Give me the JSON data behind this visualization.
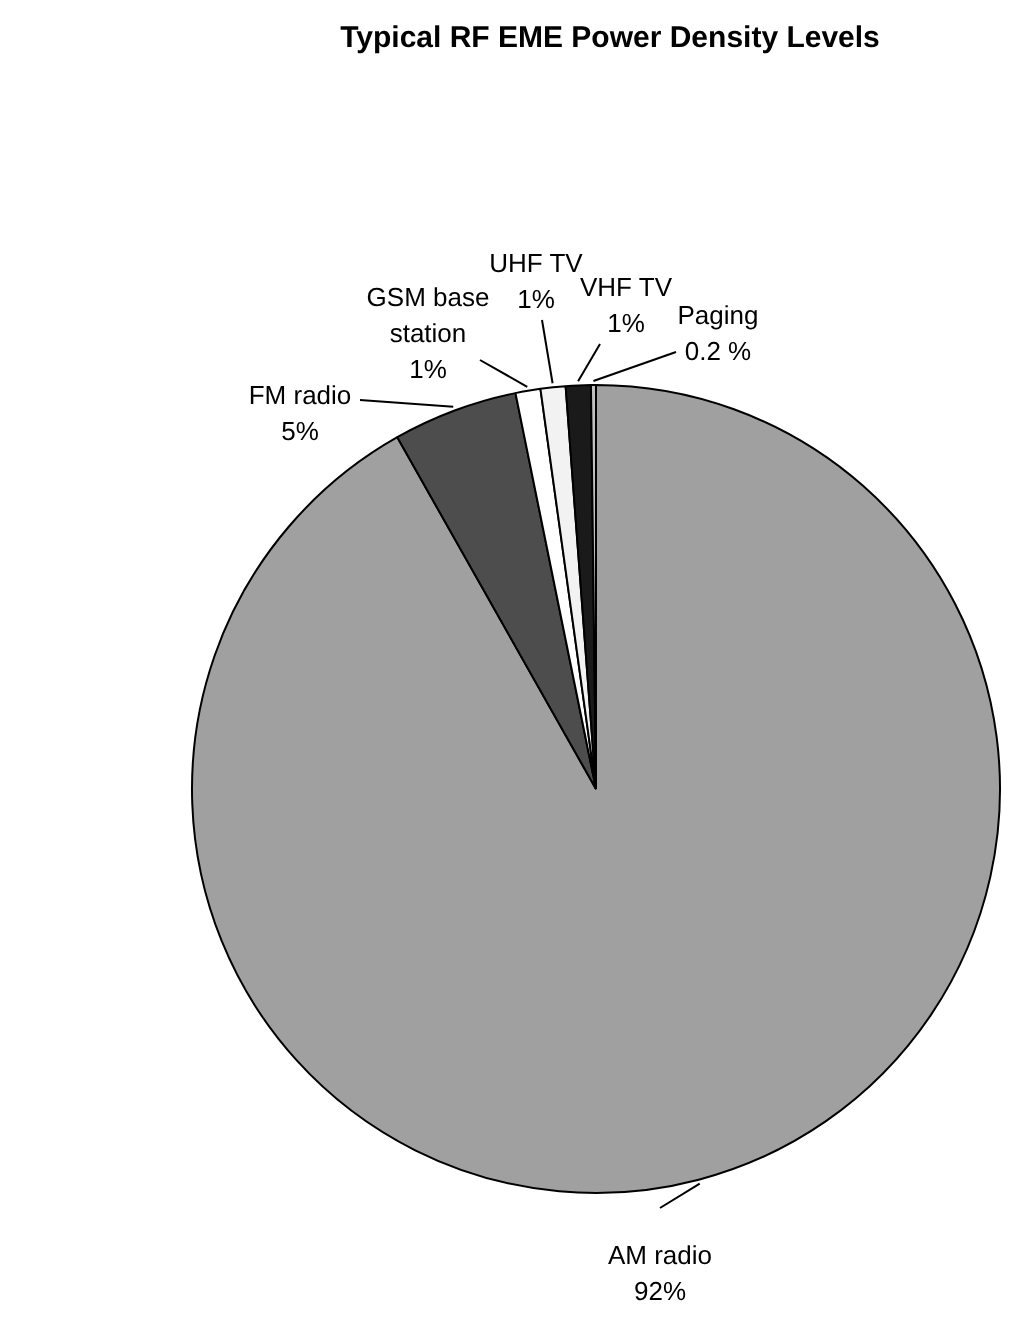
{
  "chart_data": {
    "type": "pie",
    "title": "Typical RF EME Power Density Levels",
    "categories": [
      "AM radio",
      "FM radio",
      "GSM base station",
      "UHF TV",
      "VHF TV",
      "Paging"
    ],
    "values": [
      92,
      5,
      1,
      1,
      1,
      0.2
    ],
    "colors": [
      "#a0a0a0",
      "#4d4d4d",
      "#ffffff",
      "#f2f2f2",
      "#1a1a1a",
      "#c0c0c0"
    ],
    "value_labels": [
      "92%",
      "5%",
      "1%",
      "1%",
      "1%",
      "0.2 %"
    ],
    "legend": false
  }
}
